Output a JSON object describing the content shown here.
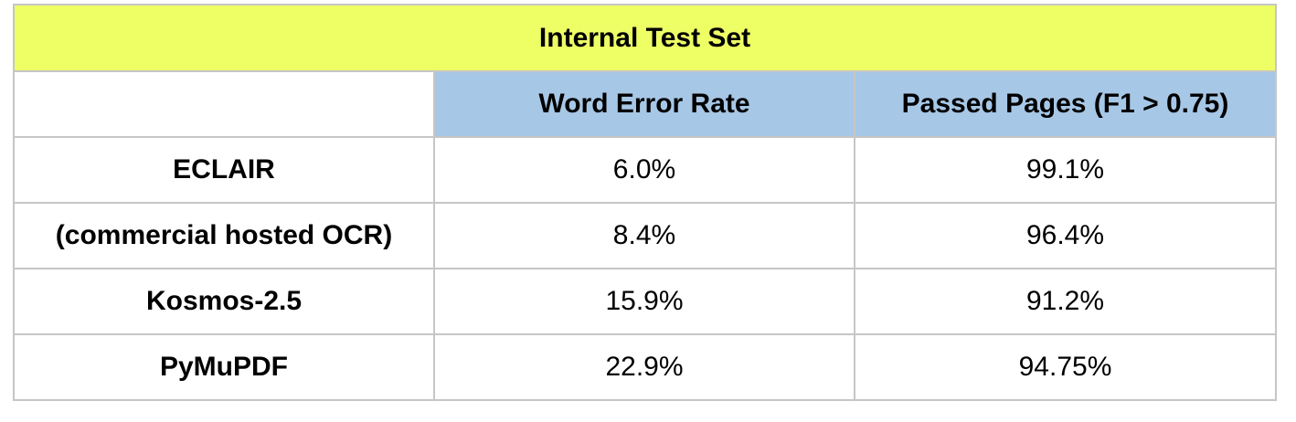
{
  "table": {
    "title": "Internal Test Set",
    "columns": [
      "",
      "Word Error Rate",
      "Passed Pages (F1 > 0.75)"
    ],
    "rows": [
      {
        "label": "ECLAIR",
        "wer": "6.0%",
        "passed": "99.1%"
      },
      {
        "label": "(commercial hosted OCR)",
        "wer": "8.4%",
        "passed": "96.4%"
      },
      {
        "label": "Kosmos-2.5",
        "wer": "15.9%",
        "passed": "91.2%"
      },
      {
        "label": "PyMuPDF",
        "wer": "22.9%",
        "passed": "94.75%"
      }
    ]
  },
  "colors": {
    "title_bg": "#eeff66",
    "header_bg": "#a7c7e6",
    "border": "#c6c6c6"
  }
}
